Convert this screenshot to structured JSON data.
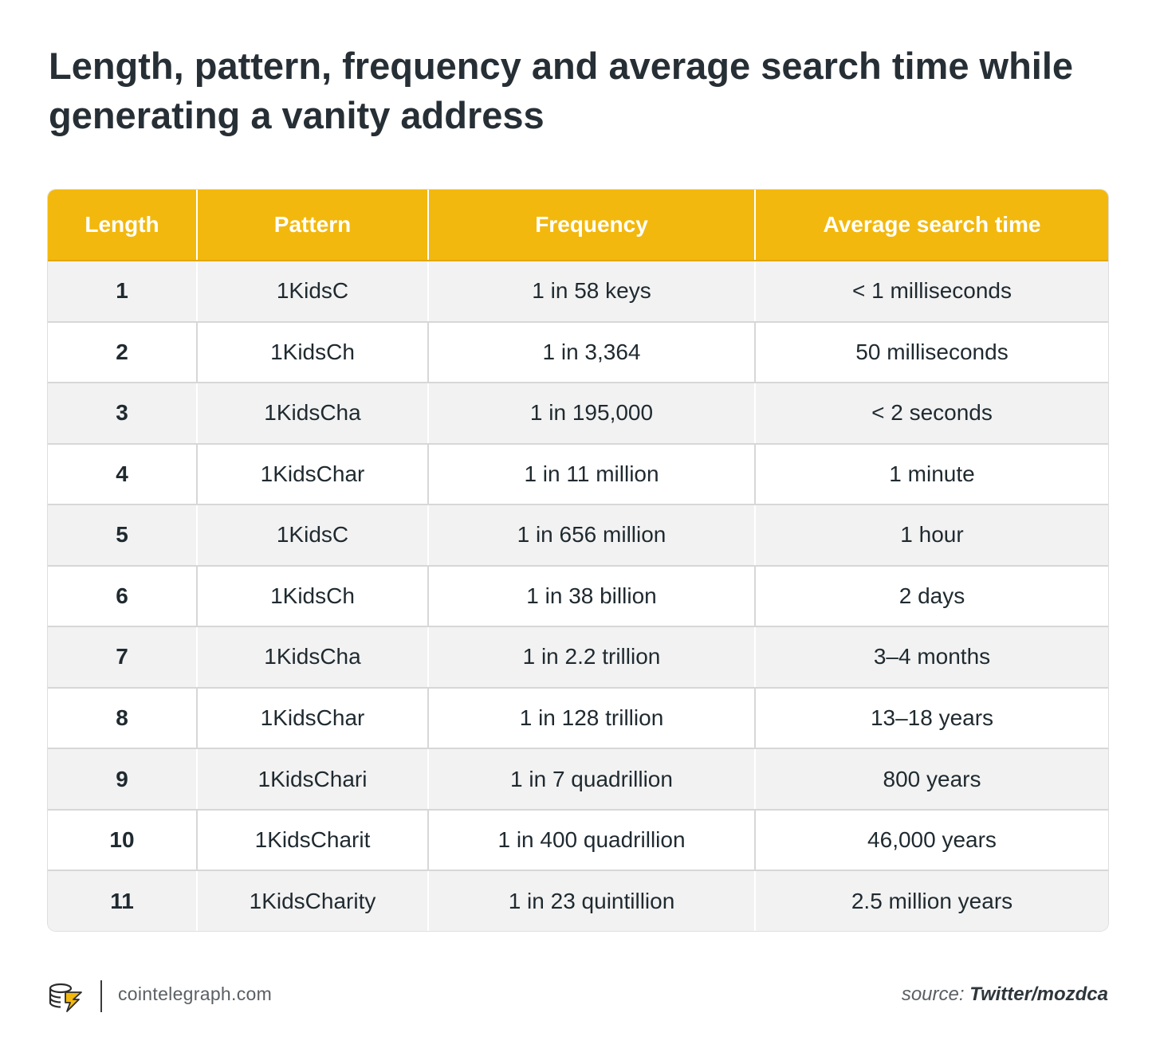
{
  "title": "Length, pattern, frequency and average search time while generating a vanity address",
  "colors": {
    "header_bg": "#f3b80e",
    "header_text": "#ffffff",
    "row_alt": "#f2f2f2",
    "text": "#1f2a30"
  },
  "chart_data": {
    "type": "table",
    "title": "Length, pattern, frequency and average search time while generating a vanity address",
    "columns": [
      "Length",
      "Pattern",
      "Frequency",
      "Average search time"
    ],
    "rows": [
      [
        "1",
        "1KidsC",
        "1 in 58 keys",
        "< 1 milliseconds"
      ],
      [
        "2",
        "1KidsCh",
        "1 in 3,364",
        "50 milliseconds"
      ],
      [
        "3",
        "1KidsCha",
        "1 in 195,000",
        "< 2 seconds"
      ],
      [
        "4",
        "1KidsChar",
        "1 in 11 million",
        "1 minute"
      ],
      [
        "5",
        "1KidsC",
        "1 in 656 million",
        "1 hour"
      ],
      [
        "6",
        "1KidsCh",
        "1 in 38 billion",
        "2 days"
      ],
      [
        "7",
        "1KidsCha",
        "1 in 2.2 trillion",
        "3–4 months"
      ],
      [
        "8",
        "1KidsChar",
        "1 in 128 trillion",
        "13–18 years"
      ],
      [
        "9",
        "1KidsChari",
        "1 in 7 quadrillion",
        "800 years"
      ],
      [
        "10",
        "1KidsCharit",
        "1 in 400 quadrillion",
        "46,000 years"
      ],
      [
        "11",
        "1KidsCharity",
        "1 in 23 quintillion",
        "2.5 million years"
      ]
    ]
  },
  "footer": {
    "logo_icon": "cointelegraph-logo-icon",
    "site": "cointelegraph.com",
    "source_label": "source:",
    "source_value": "Twitter/mozdca"
  }
}
